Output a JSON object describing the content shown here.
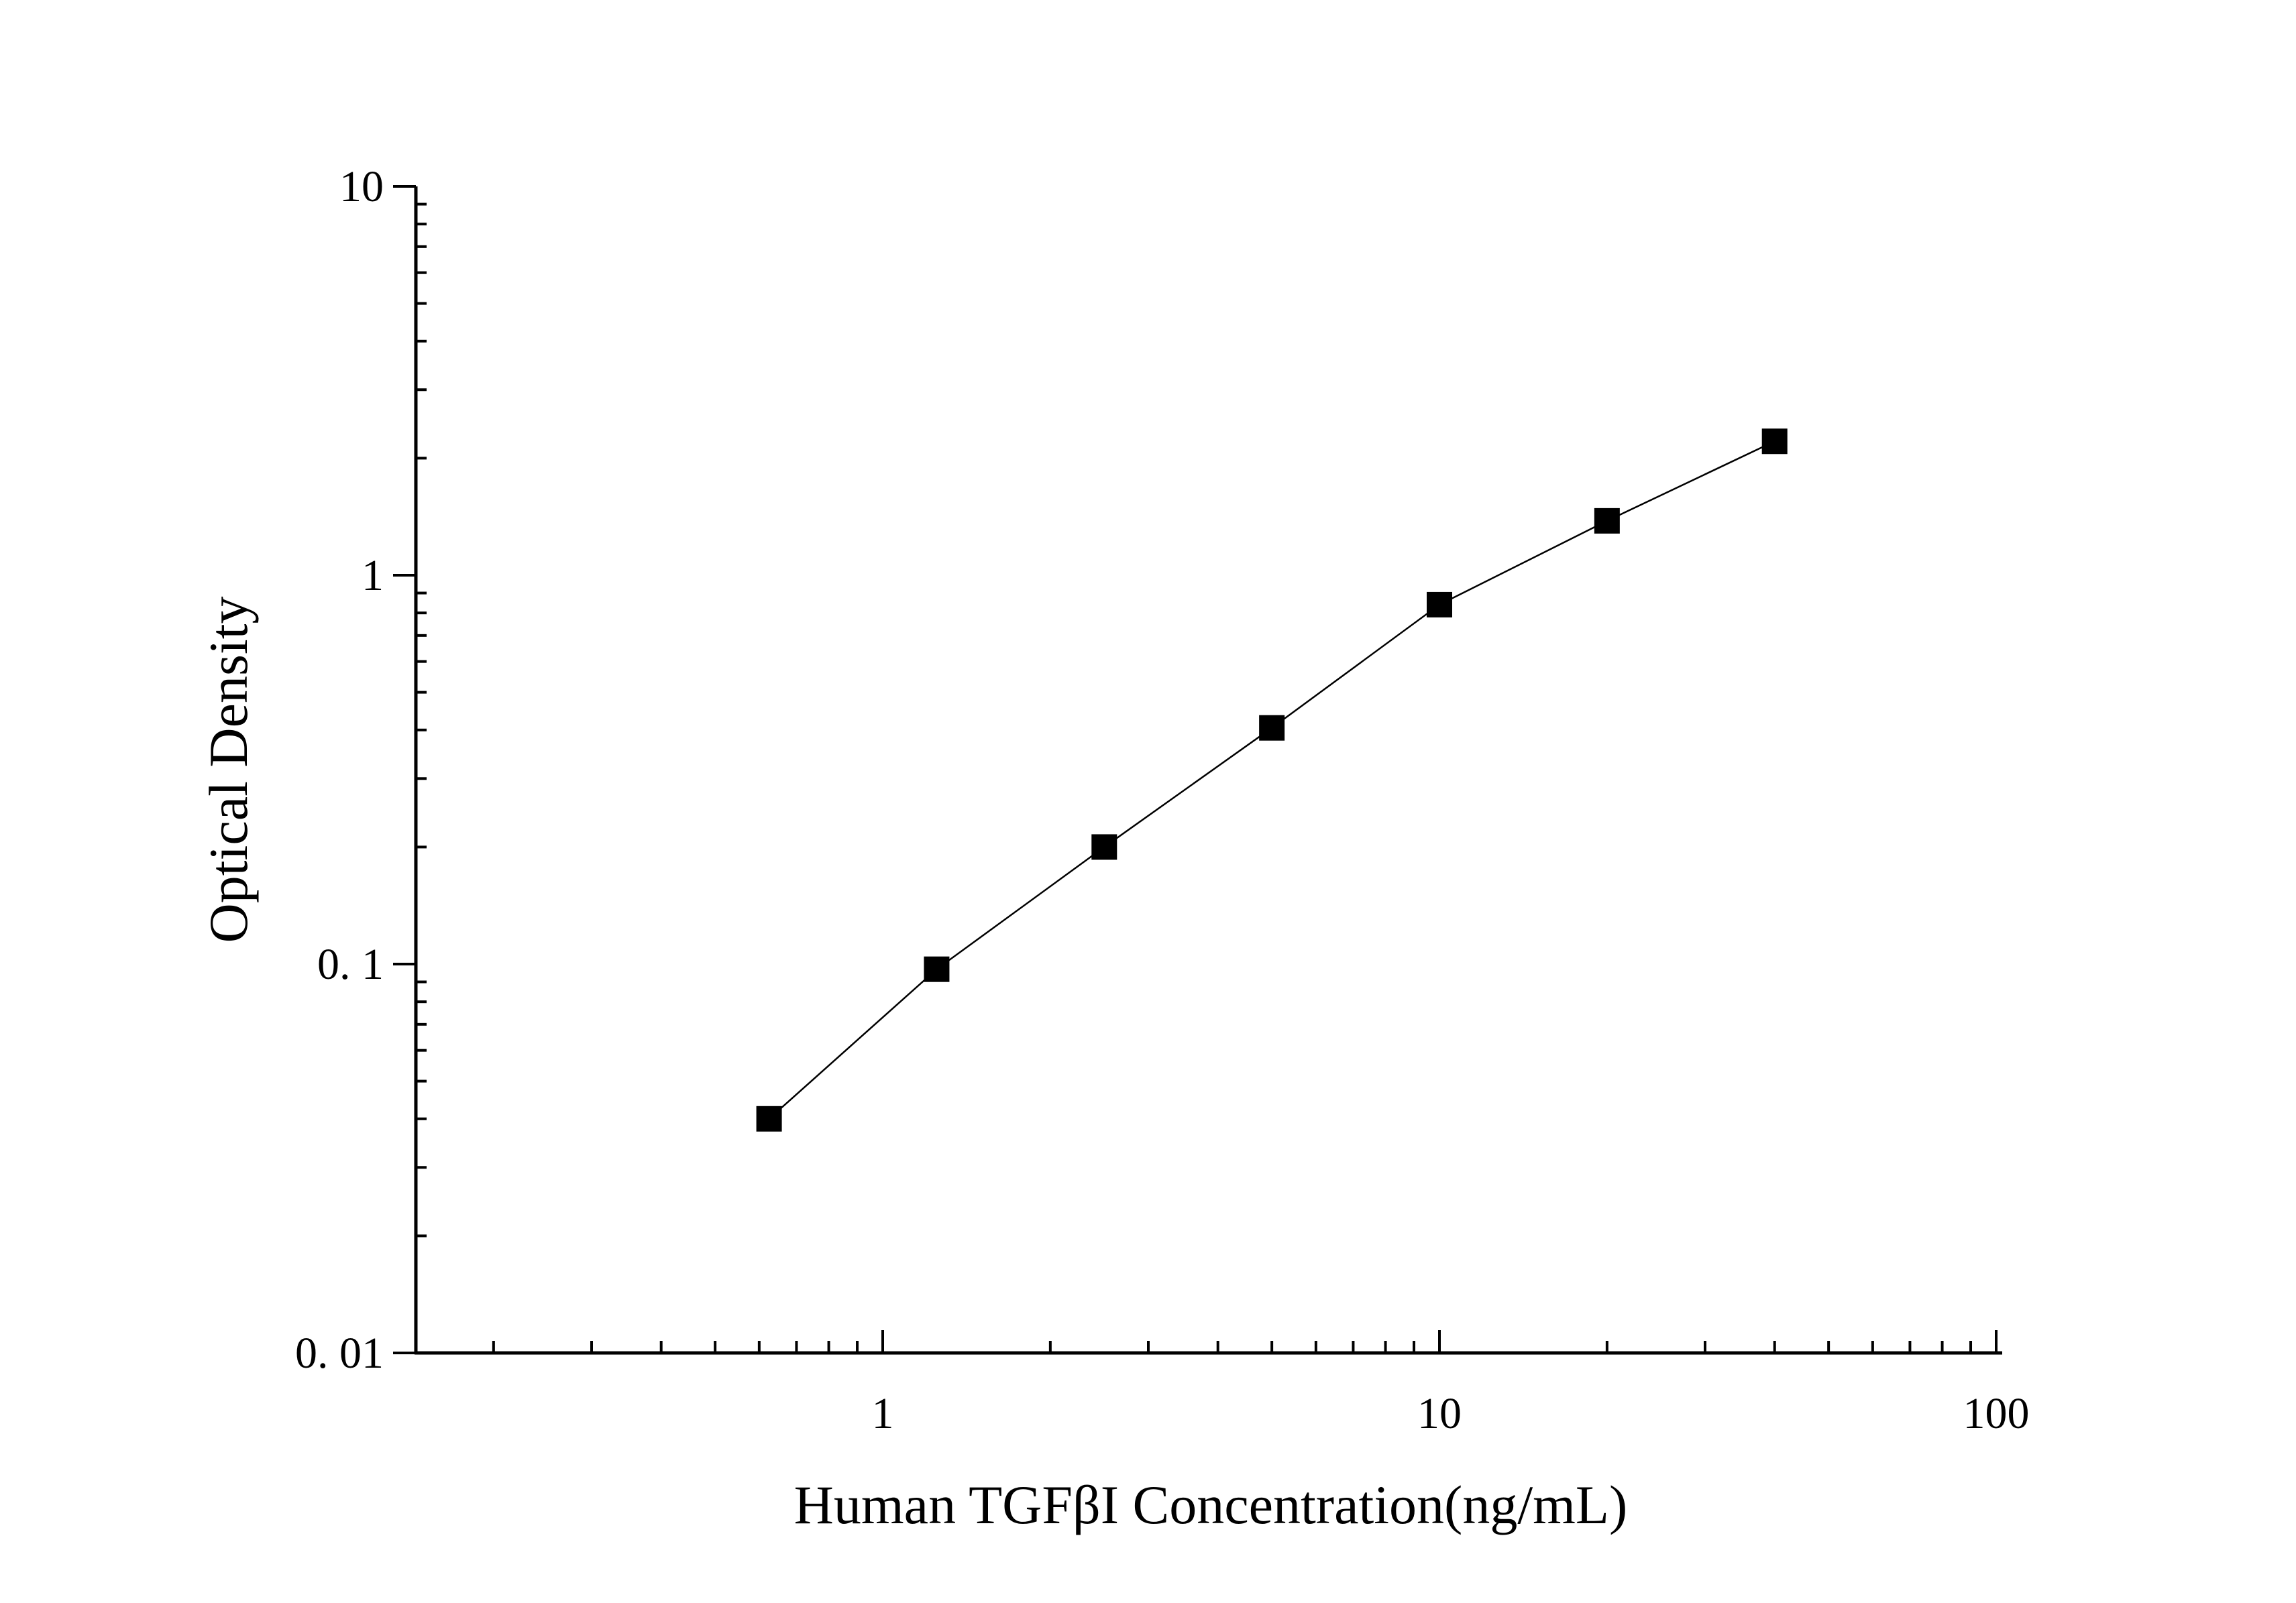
{
  "chart_data": {
    "type": "line",
    "xlabel": "Human TGFβI Concentration(ng/mL)",
    "ylabel": "Optical Density",
    "xscale": "log",
    "yscale": "log",
    "xlim": [
      0.15,
      100
    ],
    "ylim": [
      0.01,
      10
    ],
    "grid": false,
    "legend": "none",
    "x_ticks": [
      {
        "value": 1,
        "label": "1"
      },
      {
        "value": 10,
        "label": "10"
      },
      {
        "value": 100,
        "label": "100"
      }
    ],
    "y_ticks": [
      {
        "value": 0.01,
        "label": "0. 01"
      },
      {
        "value": 0.1,
        "label": "0. 1"
      },
      {
        "value": 1,
        "label": "1"
      },
      {
        "value": 10,
        "label": "10"
      }
    ],
    "series": [
      {
        "marker": "square",
        "color": "#000000",
        "x": [
          0.625,
          1.25,
          2.5,
          5,
          10,
          20,
          40
        ],
        "y": [
          0.04,
          0.097,
          0.2,
          0.405,
          0.84,
          1.38,
          2.21
        ]
      }
    ]
  }
}
